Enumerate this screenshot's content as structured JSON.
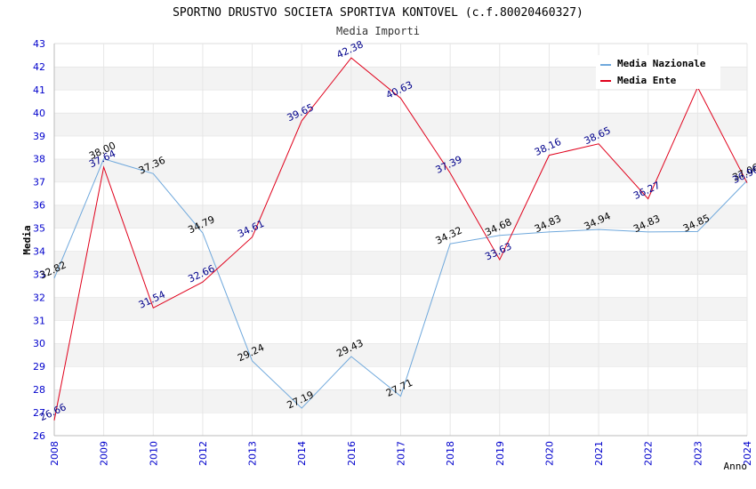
{
  "chart_data": {
    "type": "line",
    "title": "SPORTNO DRUSTVO SOCIETA SPORTIVA KONTOVEL (c.f.80020460327)",
    "subtitle": "Media Importi",
    "xlabel": "Anno",
    "ylabel": "Media",
    "ylim": [
      26,
      43
    ],
    "yticks": [
      26,
      27,
      28,
      29,
      30,
      31,
      32,
      33,
      34,
      35,
      36,
      37,
      38,
      39,
      40,
      41,
      42,
      43
    ],
    "categories": [
      "2008",
      "2009",
      "2010",
      "2012",
      "2013",
      "2014",
      "2016",
      "2017",
      "2018",
      "2019",
      "2020",
      "2021",
      "2022",
      "2023",
      "2024"
    ],
    "grid": "horizontal alternating bands",
    "legend_position": "top-right",
    "series": [
      {
        "name": "Media Nazionale",
        "color": "#6fa8dc",
        "label_color": "#000000",
        "values": [
          32.82,
          38.0,
          37.36,
          34.79,
          29.24,
          27.19,
          29.43,
          27.71,
          34.32,
          34.68,
          34.83,
          34.94,
          34.83,
          34.85,
          37.06
        ],
        "labels": [
          "32.82",
          "38.00",
          "37.36",
          "34.79",
          "29.24",
          "27.19",
          "29.43",
          "27.71",
          "34.32",
          "34.68",
          "34.83",
          "34.94",
          "34.83",
          "34.85",
          "37.06"
        ]
      },
      {
        "name": "Media Ente",
        "color": "#e0001b",
        "label_color": "#00008b",
        "values": [
          26.66,
          37.64,
          31.54,
          32.66,
          34.61,
          39.65,
          42.38,
          40.63,
          37.39,
          33.63,
          38.16,
          38.65,
          36.27,
          41.1,
          36.96
        ],
        "labels": [
          "26.66",
          "37.64",
          "31.54",
          "32.66",
          "34.61",
          "39.65",
          "42.38",
          "40.63",
          "37.39",
          "33.63",
          "38.16",
          "38.65",
          "36.27",
          "",
          "36.96"
        ]
      }
    ]
  }
}
